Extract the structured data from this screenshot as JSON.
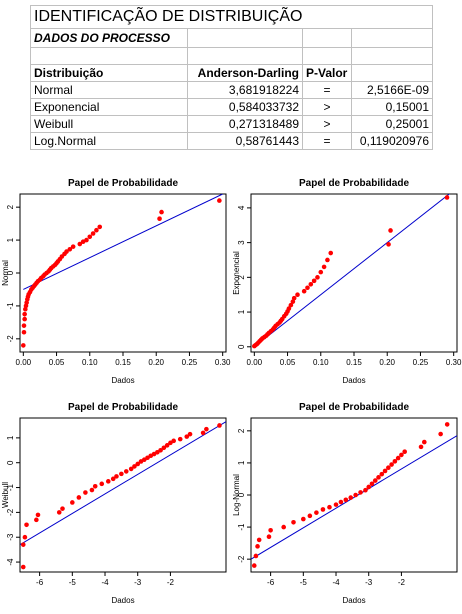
{
  "sheet": {
    "title": "IDENTIFICAÇÃO DE DISTRIBUIÇÃO",
    "subtitle": "DADOS DO PROCESSO",
    "headers": [
      "Distribuição",
      "Anderson-Darling",
      "P-Valor",
      ""
    ],
    "rows": [
      {
        "name": "Normal",
        "ad": "3,681918224",
        "op": "=",
        "p": "2,5166E-09"
      },
      {
        "name": "Exponencial",
        "ad": "0,584033732",
        "op": ">",
        "p": "0,15001"
      },
      {
        "name": "Weibull",
        "ad": "0,271318489",
        "op": ">",
        "p": "0,25001"
      },
      {
        "name": "Log.Normal",
        "ad": "0,58761443",
        "op": "=",
        "p": "0,119020976"
      }
    ]
  },
  "colors": {
    "points": "#ff0000",
    "line": "#0000cc",
    "grid": "#c0c0c0"
  },
  "chart_data": [
    {
      "type": "scatter",
      "title": "Papel de Probabilidade",
      "xlabel": "Dados",
      "ylabel": "Normal",
      "xlim": [
        -0.005,
        0.305
      ],
      "ylim": [
        -2.4,
        2.4
      ],
      "xticks": [
        0.0,
        0.05,
        0.1,
        0.15,
        0.2,
        0.25,
        0.3
      ],
      "xtick_labels": [
        "0.00",
        "0.05",
        "0.10",
        "0.15",
        "0.20",
        "0.25",
        "0.30"
      ],
      "yticks": [
        -2,
        -1,
        0,
        1,
        2
      ],
      "ytick_labels": [
        "-2",
        "-1",
        "0",
        "1",
        "2"
      ],
      "line": [
        [
          0.0,
          -0.5
        ],
        [
          0.3,
          2.4
        ]
      ],
      "points": [
        [
          0.0,
          -2.2
        ],
        [
          0.001,
          -1.8
        ],
        [
          0.001,
          -1.6
        ],
        [
          0.002,
          -1.4
        ],
        [
          0.002,
          -1.25
        ],
        [
          0.003,
          -1.1
        ],
        [
          0.004,
          -1.0
        ],
        [
          0.005,
          -0.9
        ],
        [
          0.006,
          -0.8
        ],
        [
          0.007,
          -0.72
        ],
        [
          0.008,
          -0.65
        ],
        [
          0.01,
          -0.58
        ],
        [
          0.012,
          -0.5
        ],
        [
          0.014,
          -0.45
        ],
        [
          0.016,
          -0.4
        ],
        [
          0.018,
          -0.35
        ],
        [
          0.02,
          -0.3
        ],
        [
          0.022,
          -0.25
        ],
        [
          0.025,
          -0.2
        ],
        [
          0.027,
          -0.15
        ],
        [
          0.03,
          -0.1
        ],
        [
          0.032,
          -0.05
        ],
        [
          0.035,
          0.0
        ],
        [
          0.038,
          0.05
        ],
        [
          0.04,
          0.1
        ],
        [
          0.042,
          0.15
        ],
        [
          0.045,
          0.2
        ],
        [
          0.048,
          0.25
        ],
        [
          0.05,
          0.3
        ],
        [
          0.052,
          0.35
        ],
        [
          0.055,
          0.42
        ],
        [
          0.058,
          0.5
        ],
        [
          0.062,
          0.58
        ],
        [
          0.065,
          0.65
        ],
        [
          0.07,
          0.72
        ],
        [
          0.075,
          0.8
        ],
        [
          0.085,
          0.88
        ],
        [
          0.09,
          0.95
        ],
        [
          0.095,
          1.0
        ],
        [
          0.1,
          1.1
        ],
        [
          0.105,
          1.2
        ],
        [
          0.11,
          1.3
        ],
        [
          0.115,
          1.4
        ],
        [
          0.205,
          1.65
        ],
        [
          0.208,
          1.85
        ],
        [
          0.295,
          2.2
        ]
      ]
    },
    {
      "type": "scatter",
      "title": "Papel de Probabilidade",
      "xlabel": "Dados",
      "ylabel": "Exponencial",
      "xlim": [
        -0.005,
        0.305
      ],
      "ylim": [
        -0.15,
        4.4
      ],
      "xticks": [
        0.0,
        0.05,
        0.1,
        0.15,
        0.2,
        0.25,
        0.3
      ],
      "xtick_labels": [
        "0.00",
        "0.05",
        "0.10",
        "0.15",
        "0.20",
        "0.25",
        "0.30"
      ],
      "yticks": [
        0,
        1,
        2,
        3,
        4
      ],
      "ytick_labels": [
        "0",
        "1",
        "2",
        "3",
        "4"
      ],
      "line": [
        [
          0.0,
          0.0
        ],
        [
          0.3,
          4.5
        ]
      ],
      "points": [
        [
          0.0,
          0.02
        ],
        [
          0.002,
          0.05
        ],
        [
          0.004,
          0.08
        ],
        [
          0.006,
          0.12
        ],
        [
          0.008,
          0.16
        ],
        [
          0.01,
          0.2
        ],
        [
          0.012,
          0.24
        ],
        [
          0.015,
          0.28
        ],
        [
          0.018,
          0.32
        ],
        [
          0.02,
          0.36
        ],
        [
          0.022,
          0.4
        ],
        [
          0.025,
          0.45
        ],
        [
          0.028,
          0.5
        ],
        [
          0.03,
          0.55
        ],
        [
          0.032,
          0.6
        ],
        [
          0.035,
          0.65
        ],
        [
          0.038,
          0.7
        ],
        [
          0.04,
          0.75
        ],
        [
          0.042,
          0.8
        ],
        [
          0.045,
          0.88
        ],
        [
          0.048,
          0.95
        ],
        [
          0.05,
          1.02
        ],
        [
          0.052,
          1.1
        ],
        [
          0.055,
          1.2
        ],
        [
          0.058,
          1.3
        ],
        [
          0.06,
          1.4
        ],
        [
          0.065,
          1.5
        ],
        [
          0.075,
          1.6
        ],
        [
          0.08,
          1.7
        ],
        [
          0.085,
          1.8
        ],
        [
          0.09,
          1.9
        ],
        [
          0.095,
          2.0
        ],
        [
          0.1,
          2.15
        ],
        [
          0.105,
          2.3
        ],
        [
          0.11,
          2.5
        ],
        [
          0.115,
          2.7
        ],
        [
          0.202,
          2.95
        ],
        [
          0.205,
          3.35
        ],
        [
          0.29,
          4.3
        ]
      ]
    },
    {
      "type": "scatter",
      "title": "Papel de Probabilidade",
      "xlabel": "Dados",
      "ylabel": "Weibull",
      "xlim": [
        -6.6,
        -0.3
      ],
      "ylim": [
        -4.4,
        1.8
      ],
      "xticks": [
        -6,
        -5,
        -4,
        -3,
        -2
      ],
      "xtick_labels": [
        "-6",
        "-5",
        "-4",
        "-3",
        "-2"
      ],
      "yticks": [
        -4,
        -3,
        -2,
        -1,
        0,
        1
      ],
      "ytick_labels": [
        "-4",
        "-3",
        "-2",
        "-1",
        "0",
        "1"
      ],
      "line": [
        [
          -6.6,
          -3.3
        ],
        [
          -0.3,
          1.65
        ]
      ],
      "points": [
        [
          -6.5,
          -4.2
        ],
        [
          -6.5,
          -3.3
        ],
        [
          -6.45,
          -3.0
        ],
        [
          -6.4,
          -2.5
        ],
        [
          -6.1,
          -2.3
        ],
        [
          -6.05,
          -2.1
        ],
        [
          -5.4,
          -2.0
        ],
        [
          -5.3,
          -1.85
        ],
        [
          -5.0,
          -1.6
        ],
        [
          -4.8,
          -1.4
        ],
        [
          -4.6,
          -1.2
        ],
        [
          -4.4,
          -1.1
        ],
        [
          -4.3,
          -0.95
        ],
        [
          -4.1,
          -0.85
        ],
        [
          -3.9,
          -0.75
        ],
        [
          -3.75,
          -0.65
        ],
        [
          -3.65,
          -0.55
        ],
        [
          -3.5,
          -0.45
        ],
        [
          -3.35,
          -0.35
        ],
        [
          -3.2,
          -0.25
        ],
        [
          -3.1,
          -0.15
        ],
        [
          -3.0,
          -0.05
        ],
        [
          -2.9,
          0.05
        ],
        [
          -2.8,
          0.12
        ],
        [
          -2.7,
          0.2
        ],
        [
          -2.6,
          0.28
        ],
        [
          -2.5,
          0.35
        ],
        [
          -2.4,
          0.42
        ],
        [
          -2.3,
          0.5
        ],
        [
          -2.2,
          0.6
        ],
        [
          -2.1,
          0.7
        ],
        [
          -2.0,
          0.8
        ],
        [
          -1.9,
          0.88
        ],
        [
          -1.7,
          0.95
        ],
        [
          -1.5,
          1.05
        ],
        [
          -1.4,
          1.15
        ],
        [
          -1.0,
          1.2
        ],
        [
          -0.9,
          1.35
        ],
        [
          -0.5,
          1.5
        ]
      ]
    },
    {
      "type": "scatter",
      "title": "Papel de Probabilidade",
      "xlabel": "Dados",
      "ylabel": "Log-Normal",
      "xlim": [
        -6.6,
        -0.3
      ],
      "ylim": [
        -2.4,
        2.4
      ],
      "xticks": [
        -6,
        -5,
        -4,
        -3,
        -2
      ],
      "xtick_labels": [
        "-6",
        "-5",
        "-4",
        "-3",
        "-2"
      ],
      "yticks": [
        -2,
        -1,
        0,
        1,
        2
      ],
      "ytick_labels": [
        "-2",
        "-1",
        "0",
        "1",
        "2"
      ],
      "line": [
        [
          -6.6,
          -2.0
        ],
        [
          -0.3,
          1.85
        ]
      ],
      "points": [
        [
          -6.5,
          -2.2
        ],
        [
          -6.45,
          -1.9
        ],
        [
          -6.4,
          -1.6
        ],
        [
          -6.35,
          -1.4
        ],
        [
          -6.05,
          -1.3
        ],
        [
          -6.0,
          -1.1
        ],
        [
          -5.6,
          -1.0
        ],
        [
          -5.3,
          -0.85
        ],
        [
          -5.0,
          -0.75
        ],
        [
          -4.8,
          -0.65
        ],
        [
          -4.6,
          -0.55
        ],
        [
          -4.4,
          -0.45
        ],
        [
          -4.2,
          -0.38
        ],
        [
          -4.0,
          -0.3
        ],
        [
          -3.85,
          -0.22
        ],
        [
          -3.7,
          -0.15
        ],
        [
          -3.55,
          -0.08
        ],
        [
          -3.4,
          0.0
        ],
        [
          -3.25,
          0.08
        ],
        [
          -3.1,
          0.15
        ],
        [
          -3.0,
          0.25
        ],
        [
          -2.9,
          0.35
        ],
        [
          -2.8,
          0.45
        ],
        [
          -2.7,
          0.55
        ],
        [
          -2.6,
          0.65
        ],
        [
          -2.5,
          0.75
        ],
        [
          -2.4,
          0.85
        ],
        [
          -2.3,
          0.95
        ],
        [
          -2.2,
          1.05
        ],
        [
          -2.1,
          1.15
        ],
        [
          -2.0,
          1.25
        ],
        [
          -1.9,
          1.35
        ],
        [
          -1.4,
          1.5
        ],
        [
          -1.3,
          1.65
        ],
        [
          -0.8,
          1.9
        ],
        [
          -0.6,
          2.2
        ]
      ]
    }
  ]
}
